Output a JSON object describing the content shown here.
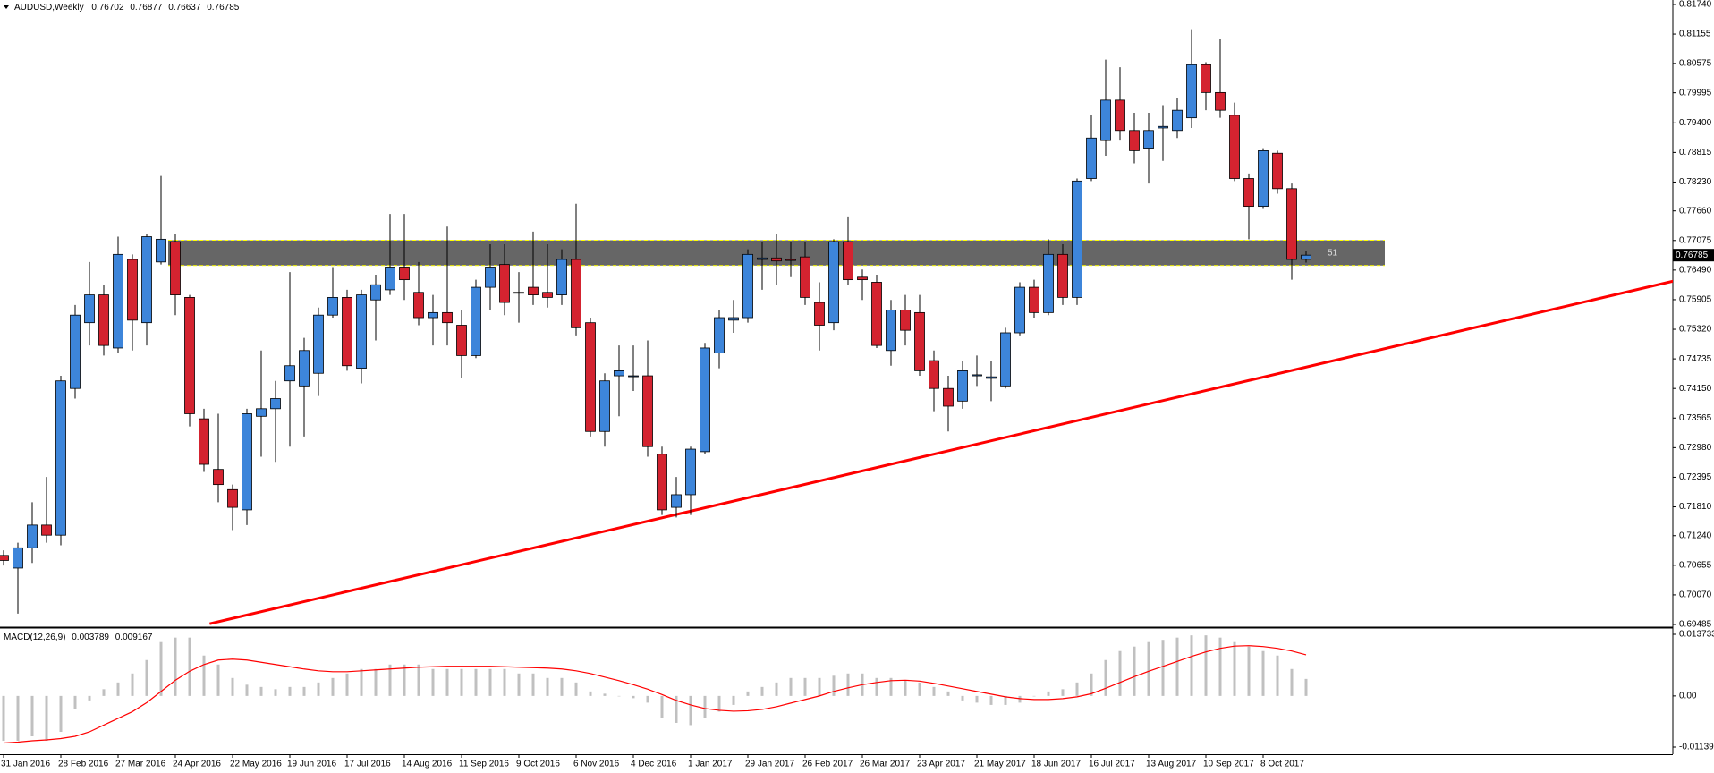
{
  "chart_data": [
    {
      "type": "candlestick",
      "title": "AUDUSD,Weekly",
      "categories": [
        "31 Jan 2016",
        null,
        null,
        null,
        "28 Feb 2016",
        null,
        null,
        null,
        "27 Mar 2016",
        null,
        null,
        null,
        "24 Apr 2016",
        null,
        null,
        null,
        "22 May 2016",
        null,
        null,
        null,
        "19 Jun 2016",
        null,
        null,
        null,
        "17 Jul 2016",
        null,
        null,
        null,
        "14 Aug 2016",
        null,
        null,
        null,
        "11 Sep 2016",
        null,
        null,
        null,
        "9 Oct 2016",
        null,
        null,
        null,
        "6 Nov 2016",
        null,
        null,
        null,
        "4 Dec 2016",
        null,
        null,
        null,
        "1 Jan 2017",
        null,
        null,
        null,
        "29 Jan 2017",
        null,
        null,
        null,
        "26 Feb 2017",
        null,
        null,
        null,
        "26 Mar 2017",
        null,
        null,
        null,
        "23 Apr 2017",
        null,
        null,
        null,
        "21 May 2017",
        null,
        null,
        null,
        "18 Jun 2017",
        null,
        null,
        null,
        "16 Jul 2017",
        null,
        null,
        null,
        "13 Aug 2017",
        null,
        null,
        null,
        "10 Sep 2017",
        null,
        null,
        null,
        "8 Oct 2017",
        null,
        null,
        null
      ],
      "open": [
        0.7085,
        0.706,
        0.71,
        0.7145,
        0.7125,
        0.7415,
        0.7545,
        0.76,
        0.7495,
        0.767,
        0.7545,
        0.7665,
        0.7705,
        0.7595,
        0.7355,
        0.7255,
        0.7215,
        0.7175,
        0.736,
        0.7375,
        0.743,
        0.742,
        0.7445,
        0.756,
        0.7595,
        0.7455,
        0.759,
        0.761,
        0.7655,
        0.7605,
        0.7555,
        0.7565,
        0.754,
        0.748,
        0.7615,
        0.766,
        0.7605,
        0.7615,
        0.7605,
        0.76,
        0.767,
        0.7545,
        0.733,
        0.744,
        0.744,
        0.744,
        0.7285,
        0.718,
        0.7205,
        0.729,
        0.7485,
        0.755,
        0.7555,
        0.767,
        0.7673,
        0.767,
        0.7675,
        0.7585,
        0.7545,
        0.7705,
        0.7635,
        0.7625,
        0.749,
        0.757,
        0.7565,
        0.747,
        0.7415,
        0.739,
        0.744,
        0.7435,
        0.742,
        0.7525,
        0.7615,
        0.7565,
        0.768,
        0.7595,
        0.783,
        0.7905,
        0.7985,
        0.7925,
        0.789,
        0.793,
        0.7925,
        0.795,
        0.8055,
        0.8,
        0.7955,
        0.783,
        0.7775,
        0.788,
        0.781,
        0.76702
      ],
      "high": [
        0.7095,
        0.711,
        0.719,
        0.724,
        0.744,
        0.758,
        0.7665,
        0.762,
        0.7715,
        0.768,
        0.772,
        0.7835,
        0.772,
        0.76,
        0.7375,
        0.7365,
        0.7225,
        0.7375,
        0.749,
        0.743,
        0.7645,
        0.7515,
        0.7575,
        0.7655,
        0.761,
        0.761,
        0.764,
        0.776,
        0.776,
        0.7665,
        0.76,
        0.7735,
        0.757,
        0.763,
        0.77,
        0.77,
        0.7645,
        0.7725,
        0.77,
        0.769,
        0.778,
        0.7555,
        0.7445,
        0.75,
        0.75,
        0.751,
        0.73,
        0.724,
        0.73,
        0.7505,
        0.757,
        0.759,
        0.769,
        0.7705,
        0.772,
        0.7705,
        0.7705,
        0.7625,
        0.771,
        0.7755,
        0.765,
        0.764,
        0.759,
        0.76,
        0.76,
        0.749,
        0.744,
        0.747,
        0.748,
        0.747,
        0.7535,
        0.7625,
        0.763,
        0.771,
        0.77,
        0.783,
        0.7955,
        0.8065,
        0.805,
        0.796,
        0.796,
        0.7975,
        0.799,
        0.8125,
        0.806,
        0.8105,
        0.798,
        0.784,
        0.789,
        0.7885,
        0.782,
        0.76877
      ],
      "low": [
        0.7065,
        0.697,
        0.707,
        0.711,
        0.7105,
        0.7395,
        0.75,
        0.748,
        0.7485,
        0.749,
        0.75,
        0.766,
        0.756,
        0.734,
        0.725,
        0.719,
        0.7135,
        0.7145,
        0.728,
        0.727,
        0.73,
        0.732,
        0.74,
        0.7555,
        0.745,
        0.7425,
        0.751,
        0.76,
        0.759,
        0.754,
        0.75,
        0.75,
        0.7435,
        0.7475,
        0.757,
        0.756,
        0.7545,
        0.758,
        0.7575,
        0.758,
        0.752,
        0.732,
        0.73,
        0.736,
        0.741,
        0.728,
        0.7165,
        0.716,
        0.7165,
        0.7285,
        0.7455,
        0.7525,
        0.7545,
        0.761,
        0.762,
        0.7635,
        0.758,
        0.749,
        0.753,
        0.762,
        0.759,
        0.7495,
        0.746,
        0.75,
        0.744,
        0.737,
        0.733,
        0.7375,
        0.742,
        0.739,
        0.7415,
        0.752,
        0.7555,
        0.756,
        0.758,
        0.758,
        0.7825,
        0.7875,
        0.7905,
        0.786,
        0.782,
        0.7865,
        0.791,
        0.793,
        0.7965,
        0.795,
        0.7825,
        0.771,
        0.777,
        0.78,
        0.763,
        0.76637
      ],
      "close": [
        0.7075,
        0.71,
        0.7145,
        0.7125,
        0.743,
        0.756,
        0.76,
        0.75,
        0.768,
        0.755,
        0.7715,
        0.771,
        0.76,
        0.7365,
        0.7265,
        0.7225,
        0.718,
        0.7365,
        0.7375,
        0.7395,
        0.746,
        0.749,
        0.756,
        0.7595,
        0.746,
        0.76,
        0.762,
        0.7655,
        0.763,
        0.7555,
        0.7565,
        0.7545,
        0.748,
        0.7615,
        0.7655,
        0.7585,
        0.7605,
        0.76,
        0.7595,
        0.767,
        0.7535,
        0.733,
        0.743,
        0.745,
        0.744,
        0.73,
        0.7175,
        0.7205,
        0.7295,
        0.7495,
        0.7555,
        0.7555,
        0.768,
        0.7673,
        0.7667,
        0.7668,
        0.7595,
        0.754,
        0.7705,
        0.763,
        0.763,
        0.75,
        0.757,
        0.753,
        0.745,
        0.7415,
        0.738,
        0.745,
        0.7442,
        0.7438,
        0.7525,
        0.7615,
        0.7565,
        0.768,
        0.7595,
        0.7825,
        0.791,
        0.7985,
        0.7925,
        0.7885,
        0.7925,
        0.7933,
        0.7965,
        0.8055,
        0.8,
        0.7965,
        0.783,
        0.7775,
        0.7885,
        0.781,
        0.767,
        0.76785
      ],
      "up_color": "#3d85da",
      "down_color": "#d42330",
      "ylim": [
        0.69432,
        0.81828
      ],
      "yticks": [
        {
          "value": 0.8174,
          "label": "0.81740"
        },
        0.81155,
        0.80575,
        0.79995,
        {
          "value": 0.794,
          "label": "0.79400"
        },
        0.78815,
        {
          "value": 0.7823,
          "label": "0.78230"
        },
        {
          "value": 0.7766,
          "label": "0.77660"
        },
        0.77075,
        {
          "value": 0.7649,
          "label": "0.76490"
        },
        0.75905,
        {
          "value": 0.7532,
          "label": "0.75320"
        },
        0.74735,
        {
          "value": 0.7415,
          "label": "0.74150"
        },
        0.73565,
        {
          "value": 0.7298,
          "label": "0.72980"
        },
        0.72395,
        {
          "value": 0.7181,
          "label": "0.71810"
        },
        {
          "value": 0.7124,
          "label": "0.71240"
        },
        0.70655,
        {
          "value": 0.7007,
          "label": "0.70070"
        },
        0.69485
      ],
      "zone": {
        "x": [
          11.5,
          96.5
        ],
        "y": [
          0.7658,
          0.7708
        ],
        "label": "51",
        "color": "#666666",
        "border_color": "#ffff00"
      },
      "trendline": {
        "x": [
          14.4,
          120.4
        ],
        "y": [
          0.695,
          0.7652
        ],
        "color": "#ff0000"
      }
    },
    {
      "type": "macd",
      "title": "MACD(12,26,9)",
      "histogram": [
        -0.01,
        -0.01,
        -0.009,
        -0.01,
        -0.008,
        -0.003,
        -0.001,
        0.0015,
        0.003,
        0.005,
        0.008,
        0.012,
        0.013,
        0.013,
        0.009,
        0.007,
        0.004,
        0.0025,
        0.002,
        0.0015,
        0.002,
        0.002,
        0.003,
        0.004,
        0.005,
        0.006,
        0.006,
        0.007,
        0.007,
        0.007,
        0.006,
        0.006,
        0.006,
        0.006,
        0.006,
        0.006,
        0.005,
        0.005,
        0.004,
        0.004,
        0.003,
        0.001,
        0.0005,
        0,
        -0.0005,
        -0.0015,
        -0.005,
        -0.006,
        -0.0065,
        -0.005,
        -0.0035,
        -0.002,
        0.001,
        0.002,
        0.003,
        0.004,
        0.004,
        0.004,
        0.0045,
        0.005,
        0.005,
        0.004,
        0.004,
        0.0035,
        0.003,
        0.002,
        0.001,
        -0.001,
        -0.0015,
        -0.002,
        -0.002,
        -0.0015,
        0,
        0.001,
        0.0015,
        0.003,
        0.005,
        0.008,
        0.01,
        0.011,
        0.012,
        0.0125,
        0.013,
        0.0135,
        0.0135,
        0.013,
        0.012,
        0.011,
        0.01,
        0.009,
        0.006,
        0.003789
      ],
      "signal": [
        -0.0105,
        -0.0103,
        -0.01,
        -0.0098,
        -0.0095,
        -0.009,
        -0.008,
        -0.0065,
        -0.005,
        -0.0035,
        -0.0015,
        0.001,
        0.0035,
        0.0055,
        0.007,
        0.008,
        0.0082,
        0.008,
        0.0075,
        0.007,
        0.0065,
        0.006,
        0.0056,
        0.0054,
        0.0054,
        0.0056,
        0.0058,
        0.006,
        0.0062,
        0.0064,
        0.0065,
        0.0066,
        0.0066,
        0.0066,
        0.0066,
        0.0065,
        0.0064,
        0.0063,
        0.0062,
        0.006,
        0.0056,
        0.005,
        0.0042,
        0.0034,
        0.0025,
        0.0015,
        0.0003,
        -0.001,
        -0.002,
        -0.0028,
        -0.0032,
        -0.0034,
        -0.0033,
        -0.003,
        -0.0024,
        -0.0016,
        -0.0008,
        0,
        0.001,
        0.0018,
        0.0025,
        0.003,
        0.0034,
        0.0035,
        0.0033,
        0.0028,
        0.0022,
        0.0016,
        0.001,
        0.0004,
        -0.0002,
        -0.0006,
        -0.0008,
        -0.0008,
        -0.0006,
        -0.0002,
        0.0005,
        0.0017,
        0.003,
        0.0043,
        0.0055,
        0.0066,
        0.0077,
        0.0088,
        0.0098,
        0.0106,
        0.0111,
        0.0112,
        0.011,
        0.0106,
        0.01,
        0.009167
      ],
      "histogram_color": "#c0c0c0",
      "signal_color": "#ff0000",
      "ylim": [
        -0.012988,
        0.014531
      ],
      "yticks": [
        0.013733,
        {
          "value": 0,
          "label": "0.00"
        },
        -0.011393
      ]
    }
  ]
}
